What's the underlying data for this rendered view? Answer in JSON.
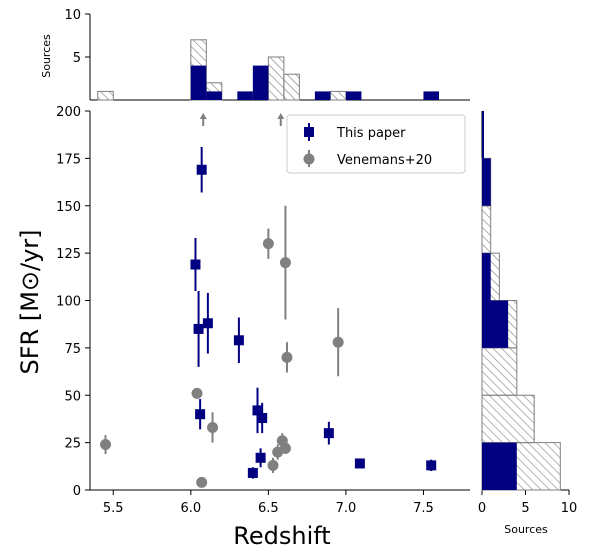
{
  "chart_data": {
    "type": "scatter",
    "xlabel": "Redshift",
    "ylabel": "SFR [M⊙/yr]",
    "xlim": [
      5.35,
      7.8
    ],
    "ylim": [
      0,
      200
    ],
    "xticks": [
      "5.5",
      "6.0",
      "6.5",
      "7.0",
      "7.5"
    ],
    "yticks": [
      "0",
      "25",
      "50",
      "75",
      "100",
      "125",
      "150",
      "175",
      "200"
    ],
    "legend": {
      "position": "top-right",
      "entries": [
        "This paper",
        "Venemans+20"
      ]
    },
    "colors": {
      "this_paper": "#000080",
      "venemans": "#808080",
      "hatch": "#7f7f7f"
    },
    "series": [
      {
        "name": "This paper",
        "marker": "square",
        "points": [
          {
            "x": 6.07,
            "y": 169,
            "err": 12
          },
          {
            "x": 6.03,
            "y": 119,
            "err": 14
          },
          {
            "x": 6.05,
            "y": 85,
            "err": 20
          },
          {
            "x": 6.11,
            "y": 88,
            "err": 16
          },
          {
            "x": 6.31,
            "y": 79,
            "err": 12
          },
          {
            "x": 6.06,
            "y": 40,
            "err": 8
          },
          {
            "x": 6.43,
            "y": 42,
            "err": 12
          },
          {
            "x": 6.46,
            "y": 38,
            "err": 8
          },
          {
            "x": 6.45,
            "y": 17,
            "err": 5
          },
          {
            "x": 6.4,
            "y": 9,
            "err": 3
          },
          {
            "x": 6.89,
            "y": 30,
            "err": 6
          },
          {
            "x": 7.09,
            "y": 14,
            "err": 2
          },
          {
            "x": 7.55,
            "y": 13,
            "err": 3
          }
        ]
      },
      {
        "name": "Venemans+20",
        "marker": "circle",
        "points": [
          {
            "x": 5.45,
            "y": 24,
            "err": 5
          },
          {
            "x": 6.04,
            "y": 51,
            "err": 0
          },
          {
            "x": 6.07,
            "y": 4,
            "err": 0
          },
          {
            "x": 6.14,
            "y": 33,
            "err": 8
          },
          {
            "x": 6.5,
            "y": 130,
            "err": 8
          },
          {
            "x": 6.61,
            "y": 120,
            "err": 30
          },
          {
            "x": 6.62,
            "y": 70,
            "err": 8
          },
          {
            "x": 6.95,
            "y": 78,
            "err": 18
          },
          {
            "x": 6.56,
            "y": 20,
            "err": 4
          },
          {
            "x": 6.59,
            "y": 26,
            "err": 4
          },
          {
            "x": 6.61,
            "y": 22,
            "err": 3
          },
          {
            "x": 6.53,
            "y": 13,
            "err": 4
          }
        ]
      }
    ],
    "upper_limit_arrows": [
      {
        "x": 6.08,
        "color": "#808080"
      },
      {
        "x": 6.58,
        "color": "#808080"
      }
    ],
    "top_histogram": {
      "ylabel": "Sources",
      "ylim": [
        0,
        10
      ],
      "yticks": [
        "5",
        "10"
      ],
      "bin_width": 0.1,
      "this_paper": [
        {
          "x0": 6.0,
          "count": 4
        },
        {
          "x0": 6.1,
          "count": 1
        },
        {
          "x0": 6.3,
          "count": 1
        },
        {
          "x0": 6.4,
          "count": 4
        },
        {
          "x0": 6.8,
          "count": 1
        },
        {
          "x0": 7.0,
          "count": 1
        },
        {
          "x0": 7.5,
          "count": 1
        }
      ],
      "venemans": [
        {
          "x0": 5.4,
          "count": 1
        },
        {
          "x0": 6.0,
          "count": 7
        },
        {
          "x0": 6.1,
          "count": 2
        },
        {
          "x0": 6.5,
          "count": 5
        },
        {
          "x0": 6.6,
          "count": 3
        },
        {
          "x0": 6.9,
          "count": 1
        }
      ]
    },
    "right_histogram": {
      "xlabel": "Sources",
      "xlim": [
        0,
        10
      ],
      "xticks": [
        "0",
        "5",
        "10"
      ],
      "bin_width": 25,
      "this_paper": [
        {
          "y0": 0,
          "count": 4
        },
        {
          "y0": 75,
          "count": 3
        },
        {
          "y0": 100,
          "count": 1
        },
        {
          "y0": 150,
          "count": 1
        },
        {
          "y0": 175,
          "count": 0
        }
      ],
      "stacked_totals": [
        {
          "y0": 0,
          "count": 9
        },
        {
          "y0": 25,
          "count": 6
        },
        {
          "y0": 50,
          "count": 4
        },
        {
          "y0": 75,
          "count": 4
        },
        {
          "y0": 100,
          "count": 2
        },
        {
          "y0": 125,
          "count": 1
        },
        {
          "y0": 150,
          "count": 1
        },
        {
          "y0": 175,
          "count": 0
        }
      ]
    }
  }
}
